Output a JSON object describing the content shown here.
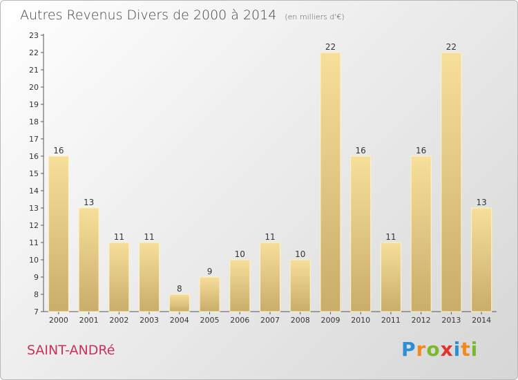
{
  "header": {
    "title": "Autres Revenus Divers de 2000 à 2014",
    "subtitle": "(en milliers d'€)"
  },
  "footer": {
    "city": "SAINT-ANDRé",
    "logo_letters": [
      "P",
      "r",
      "o",
      "x",
      "i",
      "t",
      "i"
    ],
    "logo_colors": [
      "#2b8fd6",
      "#f08a1c",
      "#7ab82c",
      "#e2342d",
      "#2b8fd6",
      "#f08a1c",
      "#7ab82c"
    ]
  },
  "chart_data": {
    "type": "bar",
    "title": "Autres Revenus Divers de 2000 à 2014",
    "categories": [
      "2000",
      "2001",
      "2002",
      "2003",
      "2004",
      "2005",
      "2006",
      "2007",
      "2008",
      "2009",
      "2010",
      "2011",
      "2012",
      "2013",
      "2014"
    ],
    "values": [
      16,
      13,
      11,
      11,
      8,
      9,
      10,
      11,
      10,
      22,
      16,
      11,
      16,
      22,
      13
    ],
    "ylim": [
      7,
      23
    ],
    "yticks": [
      7,
      8,
      9,
      10,
      11,
      12,
      13,
      14,
      15,
      16,
      17,
      18,
      19,
      20,
      21,
      22,
      23
    ],
    "xlabel": "",
    "ylabel": "",
    "grid": false,
    "bar_color": "#e8c97e"
  }
}
